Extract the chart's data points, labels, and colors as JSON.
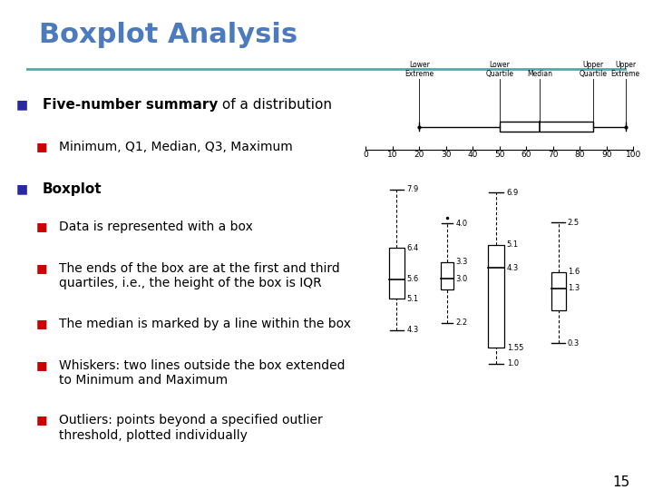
{
  "title": "Boxplot Analysis",
  "title_color": "#4B7BBE",
  "title_fontsize": 22,
  "separator_color": "#4AACAC",
  "bg_color": "#FFFFFF",
  "slide_number": "15",
  "bullet_color_main": "#2929A3",
  "bullet_color_sub": "#CC0000",
  "text_color": "#000000",
  "top_boxplot": {
    "min": 20,
    "q1": 50,
    "median": 65,
    "q3": 85,
    "max": 97,
    "xlim": [
      0,
      100
    ],
    "xticks": [
      0,
      10,
      20,
      30,
      40,
      50,
      60,
      70,
      80,
      90,
      100
    ]
  },
  "side_boxplots": [
    {
      "min": 4.3,
      "q1": 5.1,
      "median": 5.6,
      "q3": 6.4,
      "max": 7.9,
      "outliers": [],
      "labels": {
        "7.9": 7.9,
        "6.4": 6.4,
        "5.6": 5.6,
        "5.1": 5.1,
        "4.3": 4.3
      }
    },
    {
      "min": 2.2,
      "q1": 2.8,
      "median": 3.0,
      "q3": 3.3,
      "max": 4.0,
      "outliers": [
        4.1
      ],
      "labels": {
        "4.0": 4.0,
        "3.3": 3.3,
        "3.0": 3.0,
        "2.2": 2.2
      }
    },
    {
      "min": 1.0,
      "q1": 1.55,
      "median": 4.3,
      "q3": 5.1,
      "max": 6.9,
      "outliers": [],
      "labels": {
        "6.9": 6.9,
        "5.1": 5.1,
        "4.3": 4.3,
        "1.55": 1.55,
        "1.0": 1.0
      }
    },
    {
      "min": 0.3,
      "q1": 0.9,
      "median": 1.3,
      "q3": 1.6,
      "max": 2.5,
      "outliers": [],
      "labels": {
        "2.5": 2.5,
        "1.6": 1.6,
        "1.3": 1.3,
        "0.3": 0.3
      }
    }
  ],
  "line_data": [
    {
      "type": "main",
      "bold": "Five-number summary",
      "rest": " of a distribution"
    },
    {
      "type": "sub",
      "bold": "",
      "rest": "Minimum, Q1, Median, Q3, Maximum"
    },
    {
      "type": "main",
      "bold": "Boxplot",
      "rest": ""
    },
    {
      "type": "sub",
      "bold": "",
      "rest": "Data is represented with a box"
    },
    {
      "type": "sub",
      "bold": "",
      "rest": "The ends of the box are at the first and third\nquartiles, i.e., the height of the box is IQR"
    },
    {
      "type": "sub",
      "bold": "",
      "rest": "The median is marked by a line within the box"
    },
    {
      "type": "sub",
      "bold": "",
      "rest": "Whiskers: two lines outside the box extended\nto Minimum and Maximum"
    },
    {
      "type": "sub",
      "bold": "",
      "rest": "Outliers: points beyond a specified outlier\nthreshold, plotted individually"
    }
  ]
}
